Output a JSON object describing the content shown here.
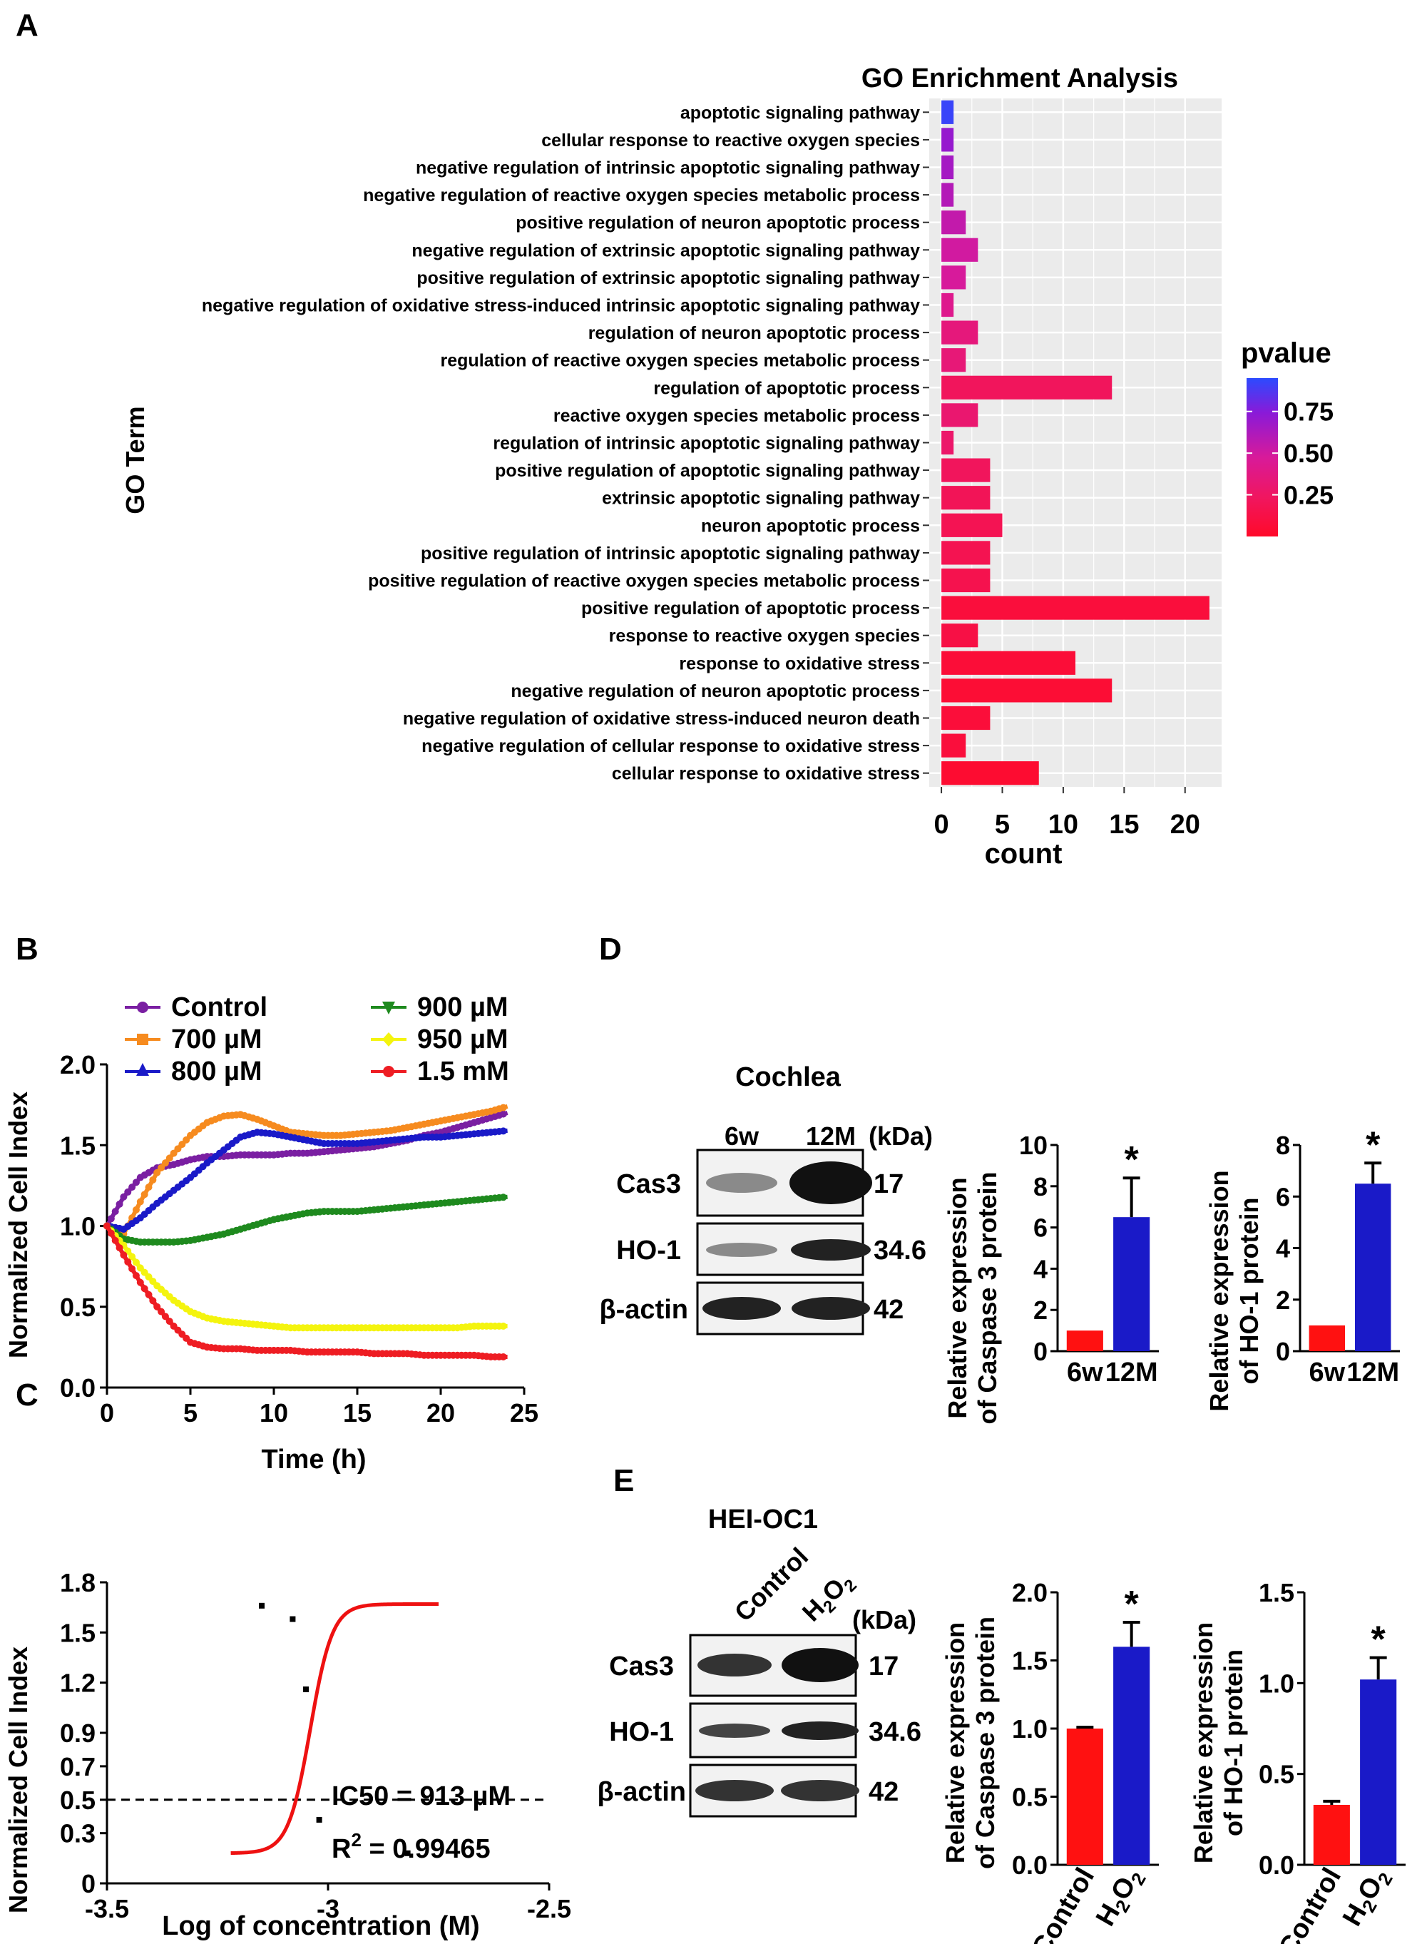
{
  "panel_labels": {
    "A": "A",
    "B": "B",
    "C": "C",
    "D": "D",
    "E": "E"
  },
  "colors": {
    "blue_bar": "#1a1ac8",
    "red_bar": "#ff1111",
    "pv_high": "#2b4bff",
    "pv_low": "#ff0a2a"
  },
  "chart_data": [
    {
      "id": "A",
      "type": "bar",
      "orientation": "horizontal",
      "title": "GO Enrichment Analysis",
      "xlabel": "count",
      "ylabel": "GO Term",
      "xlim": [
        -1,
        23
      ],
      "xticks": [
        "0",
        "5",
        "10",
        "15",
        "20"
      ],
      "legend": {
        "title": "pvalue",
        "ticks": [
          "0.75",
          "0.50",
          "0.25"
        ],
        "placement": "right",
        "range": [
          0,
          0.95
        ]
      },
      "categories": [
        "apoptotic signaling pathway",
        "cellular response to reactive oxygen species",
        "negative regulation of intrinsic apoptotic signaling pathway",
        "negative regulation of reactive oxygen species metabolic process",
        "positive regulation of neuron apoptotic process",
        "negative regulation of extrinsic apoptotic signaling pathway",
        "positive regulation of extrinsic apoptotic signaling pathway",
        "negative regulation of oxidative stress-induced intrinsic apoptotic signaling pathway",
        "regulation of neuron apoptotic process",
        "regulation of reactive oxygen species metabolic process",
        "regulation of apoptotic process",
        "reactive oxygen species metabolic process",
        "regulation of intrinsic apoptotic signaling pathway",
        "positive regulation of apoptotic signaling pathway",
        "extrinsic apoptotic signaling pathway",
        "neuron apoptotic process",
        "positive regulation of intrinsic apoptotic signaling pathway",
        "positive regulation of reactive oxygen species metabolic process",
        "positive regulation of apoptotic process",
        "response to reactive oxygen species",
        "response to oxidative stress",
        "negative regulation of neuron apoptotic process",
        "negative regulation of oxidative stress-induced neuron death",
        "negative regulation of cellular response to oxidative stress",
        "cellular response to oxidative stress"
      ],
      "values": [
        1,
        1,
        1,
        1,
        2,
        3,
        2,
        1,
        3,
        2,
        14,
        3,
        1,
        4,
        4,
        5,
        4,
        4,
        22,
        3,
        11,
        14,
        4,
        2,
        8
      ],
      "pvalues": [
        0.92,
        0.7,
        0.65,
        0.6,
        0.55,
        0.5,
        0.48,
        0.42,
        0.35,
        0.33,
        0.22,
        0.3,
        0.28,
        0.22,
        0.2,
        0.18,
        0.17,
        0.16,
        0.08,
        0.12,
        0.06,
        0.05,
        0.07,
        0.08,
        0.03
      ]
    },
    {
      "id": "B",
      "type": "line",
      "xlabel": "Time (h)",
      "ylabel": "Normalized Cell Index",
      "xlim": [
        0,
        25
      ],
      "ylim": [
        0,
        2.0
      ],
      "xticks": [
        "0",
        "5",
        "10",
        "15",
        "20",
        "25"
      ],
      "yticks": [
        "0.0",
        "0.5",
        "1.0",
        "1.5",
        "2.0"
      ],
      "legend_placement": "top",
      "series": [
        {
          "name": "Control",
          "color": "#7a1fa2",
          "marker": "circle",
          "x": [
            0,
            1,
            2,
            3,
            4,
            5,
            6,
            7,
            8,
            9,
            10,
            11,
            12,
            13,
            14,
            15,
            16,
            17,
            18,
            19,
            20,
            21,
            22,
            23,
            24
          ],
          "y": [
            1.0,
            1.18,
            1.3,
            1.36,
            1.38,
            1.41,
            1.43,
            1.43,
            1.44,
            1.44,
            1.44,
            1.45,
            1.45,
            1.46,
            1.47,
            1.48,
            1.49,
            1.51,
            1.53,
            1.56,
            1.58,
            1.61,
            1.64,
            1.67,
            1.7
          ]
        },
        {
          "name": "700 µM",
          "color": "#f68b1f",
          "marker": "square",
          "x": [
            0,
            1,
            2,
            3,
            4,
            5,
            6,
            7,
            8,
            9,
            10,
            11,
            12,
            13,
            14,
            15,
            16,
            17,
            18,
            19,
            20,
            21,
            22,
            23,
            24
          ],
          "y": [
            1.0,
            0.95,
            1.15,
            1.33,
            1.45,
            1.56,
            1.64,
            1.68,
            1.69,
            1.66,
            1.62,
            1.58,
            1.57,
            1.56,
            1.56,
            1.57,
            1.58,
            1.59,
            1.61,
            1.63,
            1.65,
            1.67,
            1.69,
            1.71,
            1.74
          ]
        },
        {
          "name": "800 µM",
          "color": "#1a1ac8",
          "marker": "triangle",
          "x": [
            0,
            1,
            2,
            3,
            4,
            5,
            6,
            7,
            8,
            9,
            10,
            11,
            12,
            13,
            14,
            15,
            16,
            17,
            18,
            19,
            20,
            21,
            22,
            23,
            24
          ],
          "y": [
            1.0,
            0.98,
            1.05,
            1.14,
            1.22,
            1.3,
            1.39,
            1.47,
            1.55,
            1.58,
            1.57,
            1.55,
            1.53,
            1.51,
            1.51,
            1.51,
            1.52,
            1.53,
            1.54,
            1.55,
            1.55,
            1.56,
            1.57,
            1.58,
            1.59
          ]
        },
        {
          "name": "900 µM",
          "color": "#1e8a1e",
          "marker": "triangle-down",
          "x": [
            0,
            1,
            2,
            3,
            4,
            5,
            6,
            7,
            8,
            9,
            10,
            11,
            12,
            13,
            14,
            15,
            16,
            17,
            18,
            19,
            20,
            21,
            22,
            23,
            24
          ],
          "y": [
            1.0,
            0.92,
            0.9,
            0.9,
            0.9,
            0.91,
            0.93,
            0.95,
            0.98,
            1.01,
            1.04,
            1.06,
            1.08,
            1.09,
            1.09,
            1.09,
            1.1,
            1.11,
            1.12,
            1.13,
            1.14,
            1.15,
            1.16,
            1.17,
            1.18
          ]
        },
        {
          "name": "950 µM",
          "color": "#f4f40e",
          "marker": "diamond",
          "x": [
            0,
            1,
            2,
            3,
            4,
            5,
            6,
            7,
            8,
            9,
            10,
            11,
            12,
            13,
            14,
            15,
            16,
            17,
            18,
            19,
            20,
            21,
            22,
            23,
            24
          ],
          "y": [
            1.0,
            0.88,
            0.74,
            0.63,
            0.54,
            0.47,
            0.43,
            0.41,
            0.4,
            0.39,
            0.38,
            0.37,
            0.37,
            0.37,
            0.37,
            0.37,
            0.37,
            0.37,
            0.37,
            0.37,
            0.37,
            0.37,
            0.38,
            0.38,
            0.38
          ]
        },
        {
          "name": "1.5 mM",
          "color": "#ee1d23",
          "marker": "circle",
          "x": [
            0,
            1,
            2,
            3,
            4,
            5,
            6,
            7,
            8,
            9,
            10,
            11,
            12,
            13,
            14,
            15,
            16,
            17,
            18,
            19,
            20,
            21,
            22,
            23,
            24
          ],
          "y": [
            1.0,
            0.82,
            0.65,
            0.5,
            0.38,
            0.28,
            0.25,
            0.24,
            0.24,
            0.23,
            0.23,
            0.23,
            0.22,
            0.22,
            0.22,
            0.22,
            0.21,
            0.21,
            0.21,
            0.2,
            0.2,
            0.2,
            0.2,
            0.19,
            0.19
          ]
        }
      ]
    },
    {
      "id": "C",
      "type": "scatter",
      "xlabel": "Log of concentration (M)",
      "ylabel": "Normalized Cell Index",
      "xlim": [
        -3.5,
        -2.5
      ],
      "ylim": [
        0,
        1.8
      ],
      "xticks": [
        "-3.5",
        "-3",
        "-2.5"
      ],
      "yticks": [
        "0",
        "0.3",
        "0.5",
        "0.7",
        "0.9",
        "1.2",
        "1.5",
        "1.8"
      ],
      "points": {
        "x": [
          -3.15,
          -3.08,
          -3.05,
          -3.02,
          -2.82
        ],
        "y": [
          1.66,
          1.58,
          1.16,
          0.38,
          0.18
        ]
      },
      "fit": {
        "top": 1.67,
        "bottom": 0.18,
        "logIC50": -3.04,
        "slope": -40
      },
      "threshold": 0.5,
      "annotations": {
        "ic50": "IC50 = 913 µM",
        "r2_prefix": "R",
        "r2_sup": "2",
        "r2_value": " = 0.99465"
      }
    },
    {
      "id": "D1",
      "type": "bar",
      "categories": [
        "6w",
        "12M"
      ],
      "values": [
        1.0,
        6.5
      ],
      "errors": [
        0,
        1.9
      ],
      "ylim": [
        0,
        10
      ],
      "yticks": [
        "0",
        "2",
        "4",
        "6",
        "8",
        "10"
      ],
      "ylabel_lines": [
        "Relative expression",
        "of Caspase 3 protein"
      ],
      "significance": "*"
    },
    {
      "id": "D2",
      "type": "bar",
      "categories": [
        "6w",
        "12M"
      ],
      "values": [
        1.0,
        6.5
      ],
      "errors": [
        0,
        0.8
      ],
      "ylim": [
        0,
        8
      ],
      "yticks": [
        "0",
        "2",
        "4",
        "6",
        "8"
      ],
      "ylabel_lines": [
        "Relative expression",
        "of HO-1 protein"
      ],
      "significance": "*"
    },
    {
      "id": "E1",
      "type": "bar",
      "categories": [
        "Control",
        "H2O2"
      ],
      "values": [
        1.0,
        1.6
      ],
      "errors": [
        0.01,
        0.18
      ],
      "ylim": [
        0,
        2.0
      ],
      "yticks": [
        "0.0",
        "0.5",
        "1.0",
        "1.5",
        "2.0"
      ],
      "ylabel_lines": [
        "Relative expression",
        "of Caspase 3 protein"
      ],
      "significance": "*"
    },
    {
      "id": "E2",
      "type": "bar",
      "categories": [
        "Control",
        "H2O2"
      ],
      "values": [
        0.33,
        1.02
      ],
      "errors": [
        0.02,
        0.12
      ],
      "ylim": [
        0,
        1.5
      ],
      "yticks": [
        "0.0",
        "0.5",
        "1.0",
        "1.5"
      ],
      "ylabel_lines": [
        "Relative expression",
        "of HO-1 protein"
      ],
      "significance": "*"
    }
  ],
  "blots": {
    "D": {
      "title": "Cochlea",
      "lanes": [
        "6w",
        "12M"
      ],
      "unit": "(kDa)",
      "proteins": [
        "Cas3",
        "HO-1",
        "β-actin"
      ],
      "weights": [
        "17",
        "34.6",
        "42"
      ]
    },
    "E": {
      "title": "HEI-OC1",
      "lanes": [
        "Control",
        "H2O2"
      ],
      "unit": "(kDa)",
      "proteins": [
        "Cas3",
        "HO-1",
        "β-actin"
      ],
      "weights": [
        "17",
        "34.6",
        "42"
      ]
    }
  }
}
